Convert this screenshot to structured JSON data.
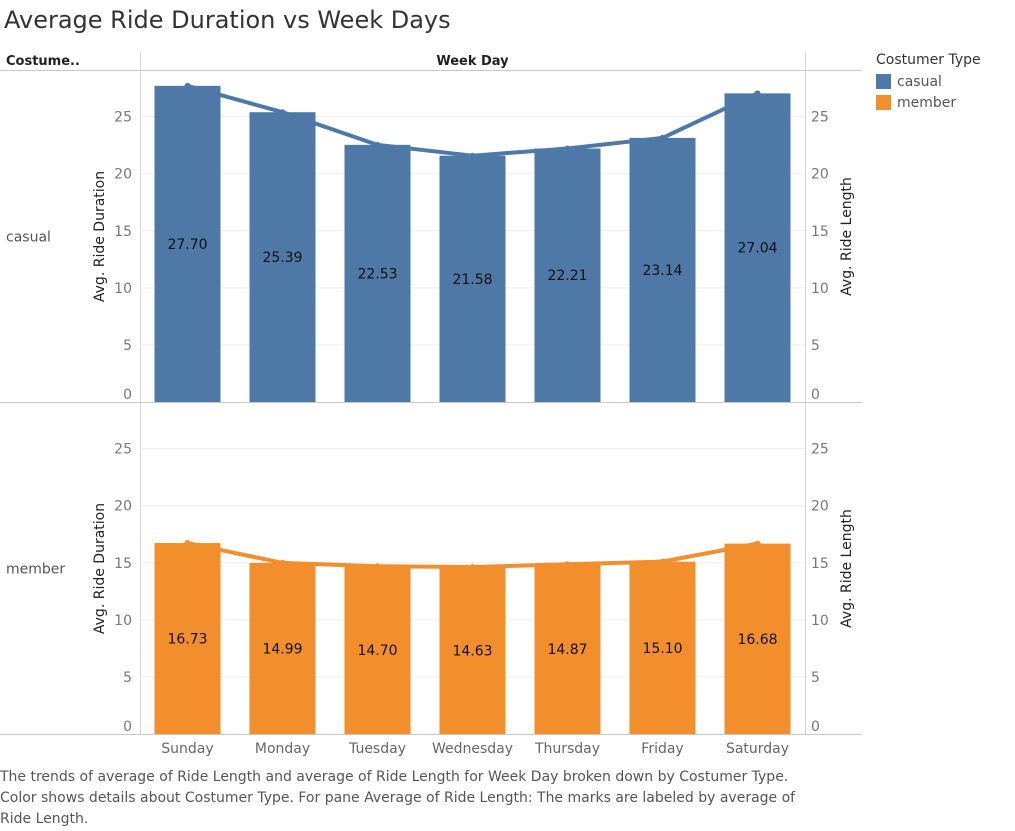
{
  "title": "Average Ride Duration vs Week Days",
  "header": {
    "row_header": "Costume..",
    "column_header": "Week Day"
  },
  "legend": {
    "title": "Costumer Type",
    "items": [
      {
        "label": "casual",
        "color": "#4e79a7"
      },
      {
        "label": "member",
        "color": "#f28e2b"
      }
    ]
  },
  "caption": [
    "The trends of average of Ride Length and average of Ride Length for Week Day broken down by Costumer Type.",
    "Color shows details about Costumer Type.  For pane Average of Ride Length:  The marks are labeled by average of",
    "Ride Length."
  ],
  "chart_data": {
    "type": "bar",
    "categories": [
      "Sunday",
      "Monday",
      "Tuesday",
      "Wednesday",
      "Thursday",
      "Friday",
      "Saturday"
    ],
    "ylabel_left": "Avg. Ride Duration",
    "ylabel_right": "Avg. Ride Length",
    "ylim": [
      0,
      29
    ],
    "yticks": [
      0,
      5,
      10,
      15,
      20,
      25
    ],
    "grid": true,
    "legend_position": "top-right",
    "series": [
      {
        "name": "casual",
        "color": "#4e79a7",
        "bar_values": [
          27.7,
          25.39,
          22.53,
          21.58,
          22.21,
          23.14,
          27.04
        ],
        "line_values": [
          27.7,
          25.39,
          22.53,
          21.58,
          22.21,
          23.14,
          27.04
        ],
        "data_labels": [
          "27.70",
          "25.39",
          "22.53",
          "21.58",
          "22.21",
          "23.14",
          "27.04"
        ]
      },
      {
        "name": "member",
        "color": "#f28e2b",
        "bar_values": [
          16.73,
          14.99,
          14.7,
          14.63,
          14.87,
          15.1,
          16.68
        ],
        "line_values": [
          16.73,
          14.99,
          14.7,
          14.63,
          14.87,
          15.1,
          16.68
        ],
        "data_labels": [
          "16.73",
          "14.99",
          "14.70",
          "14.63",
          "14.87",
          "15.10",
          "16.68"
        ]
      }
    ]
  }
}
